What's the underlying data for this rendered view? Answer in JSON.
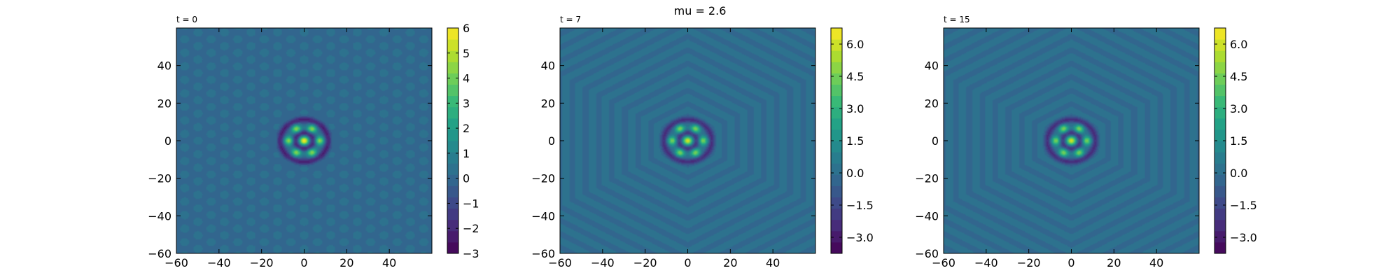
{
  "figure": {
    "suptitle": "mu = 2.6"
  },
  "colormap": [
    "#440154",
    "#482878",
    "#3e4989",
    "#31688e",
    "#26828e",
    "#1f9e89",
    "#35b779",
    "#6ece58",
    "#b5de2b",
    "#fde725"
  ],
  "chart_data": [
    {
      "type": "heatmap",
      "title": "t = 0",
      "field": "hexagonal-lattice-with-central-localized-pattern",
      "xlim": [
        -60,
        60
      ],
      "ylim": [
        -60,
        60
      ],
      "xticks": [
        -60,
        -40,
        -20,
        0,
        20,
        40
      ],
      "yticks": [
        -60,
        -40,
        -20,
        0,
        20,
        40
      ],
      "xtick_labels": [
        "−60",
        "−40",
        "−20",
        "0",
        "20",
        "40"
      ],
      "ytick_labels": [
        "−60",
        "−40",
        "−20",
        "0",
        "20",
        "40"
      ],
      "colorbar": {
        "range": [
          -3,
          6
        ],
        "ticks": [
          -3,
          -2,
          -1,
          0,
          1,
          2,
          3,
          4,
          5,
          6
        ],
        "tick_labels": [
          "−3",
          "−2",
          "−1",
          "0",
          "1",
          "2",
          "3",
          "4",
          "5",
          "6"
        ]
      }
    },
    {
      "type": "heatmap",
      "title": "t = 7",
      "field": "concentric-hexagonal-rings-with-central-localized-pattern",
      "xlim": [
        -60,
        60
      ],
      "ylim": [
        -60,
        60
      ],
      "xticks": [
        -60,
        -40,
        -20,
        0,
        20,
        40
      ],
      "yticks": [
        -60,
        -40,
        -20,
        0,
        20,
        40
      ],
      "xtick_labels": [
        "−60",
        "−40",
        "−20",
        "0",
        "20",
        "40"
      ],
      "ytick_labels": [
        "−60",
        "−40",
        "−20",
        "0",
        "20",
        "40"
      ],
      "colorbar": {
        "range": [
          -3.75,
          6.75
        ],
        "ticks": [
          -3.0,
          -1.5,
          0.0,
          1.5,
          3.0,
          4.5,
          6.0
        ],
        "tick_labels": [
          "−3.0",
          "−1.5",
          "0.0",
          "1.5",
          "3.0",
          "4.5",
          "6.0"
        ]
      }
    },
    {
      "type": "heatmap",
      "title": "t = 15",
      "field": "concentric-hexagonal-rings-with-central-localized-pattern",
      "xlim": [
        -60,
        60
      ],
      "ylim": [
        -60,
        60
      ],
      "xticks": [
        -60,
        -40,
        -20,
        0,
        20,
        40
      ],
      "yticks": [
        -60,
        -40,
        -20,
        0,
        20,
        40
      ],
      "xtick_labels": [
        "−60",
        "−40",
        "−20",
        "0",
        "20",
        "40"
      ],
      "ytick_labels": [
        "−60",
        "−40",
        "−20",
        "0",
        "20",
        "40"
      ],
      "colorbar": {
        "range": [
          -3.75,
          6.75
        ],
        "ticks": [
          -3.0,
          -1.5,
          0.0,
          1.5,
          3.0,
          4.5,
          6.0
        ],
        "tick_labels": [
          "−3.0",
          "−1.5",
          "0.0",
          "1.5",
          "3.0",
          "4.5",
          "6.0"
        ]
      }
    }
  ]
}
